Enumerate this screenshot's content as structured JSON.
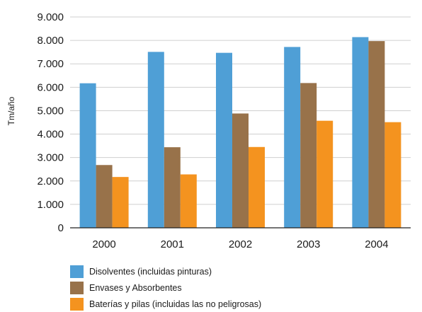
{
  "chart_data": {
    "type": "bar",
    "categories": [
      "2000",
      "2001",
      "2002",
      "2003",
      "2004"
    ],
    "series": [
      {
        "name": "Disolventes (incluidas pinturas)",
        "color": "#4f9fd6",
        "values": [
          6170,
          7510,
          7470,
          7720,
          8140
        ]
      },
      {
        "name": "Envases y Absorbentes",
        "color": "#98724a",
        "values": [
          2680,
          3440,
          4880,
          6180,
          7970
        ]
      },
      {
        "name": "Baterías y pilas (incluidas las no peligrosas)",
        "color": "#f4931f",
        "values": [
          2170,
          2280,
          3450,
          4570,
          4510
        ]
      }
    ],
    "ylabel": "Tm/año",
    "xlabel": "",
    "ylim": [
      0,
      9000
    ],
    "yticks": [
      0,
      1000,
      2000,
      3000,
      4000,
      5000,
      6000,
      7000,
      8000,
      9000
    ],
    "ytick_labels": [
      "0",
      "1.000",
      "2.000",
      "3.000",
      "4.000",
      "5.000",
      "6.000",
      "7.000",
      "8.000",
      "9.000"
    ],
    "grid": true,
    "legend_position": "bottom-left"
  }
}
